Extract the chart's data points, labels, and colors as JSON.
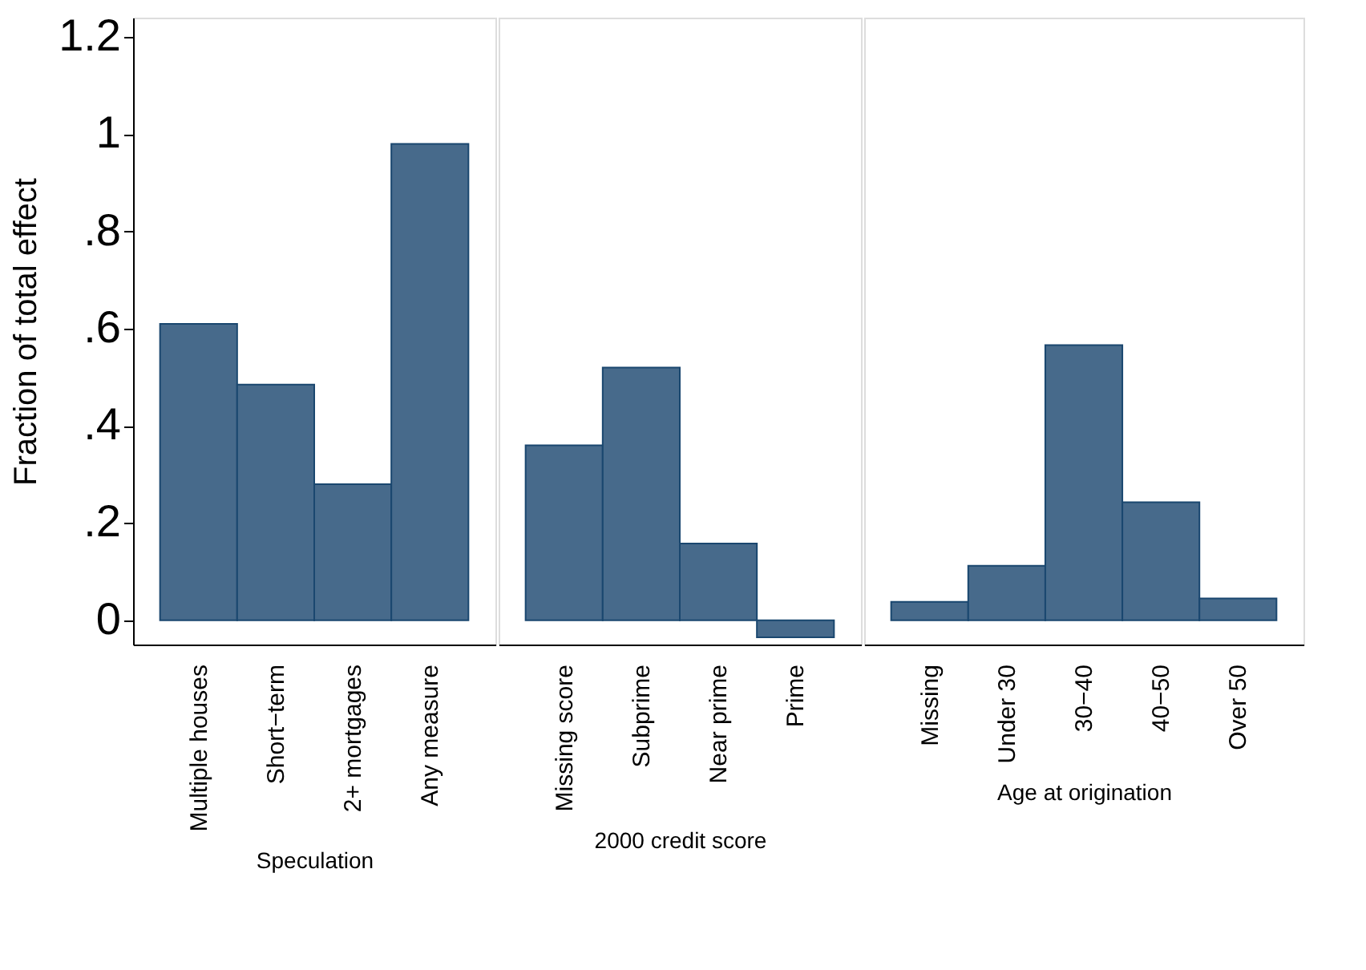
{
  "chart_data": [
    {
      "type": "bar",
      "categories": [
        "Multiple houses",
        "Short−term",
        "2+ mortgages",
        "Any measure"
      ],
      "values": [
        0.61,
        0.485,
        0.28,
        0.98
      ],
      "color": "#476a8b",
      "xlabel": "Speculation",
      "ylabel": "Fraction of total effect",
      "ylim": [
        -0.05,
        1.24
      ],
      "yticks": [
        {
          "value": 0,
          "label": "0"
        },
        {
          "value": 0.2,
          "label": ".2"
        },
        {
          "value": 0.4,
          "label": ".4"
        },
        {
          "value": 0.6,
          "label": ".6"
        },
        {
          "value": 0.8,
          "label": ".8"
        },
        {
          "value": 1,
          "label": "1"
        },
        {
          "value": 1.2,
          "label": "1.2"
        }
      ]
    },
    {
      "type": "bar",
      "categories": [
        "Missing score",
        "Subprime",
        "Near prime",
        "Prime"
      ],
      "values": [
        0.36,
        0.52,
        0.158,
        -0.035
      ],
      "color": "#476a8b",
      "xlabel": "2000 credit score",
      "ylim": [
        -0.05,
        1.24
      ],
      "tick_labels": "x"
    },
    {
      "type": "bar",
      "categories": [
        "Missing",
        "Under 30",
        "30−40",
        "40−50",
        "Over 50"
      ],
      "values": [
        0.038,
        0.112,
        0.566,
        0.243,
        0.045
      ],
      "color": "#476a8b",
      "xlabel": "Age at origination",
      "ylim": [
        -0.05,
        1.24
      ],
      "tick_labels": "x"
    }
  ]
}
